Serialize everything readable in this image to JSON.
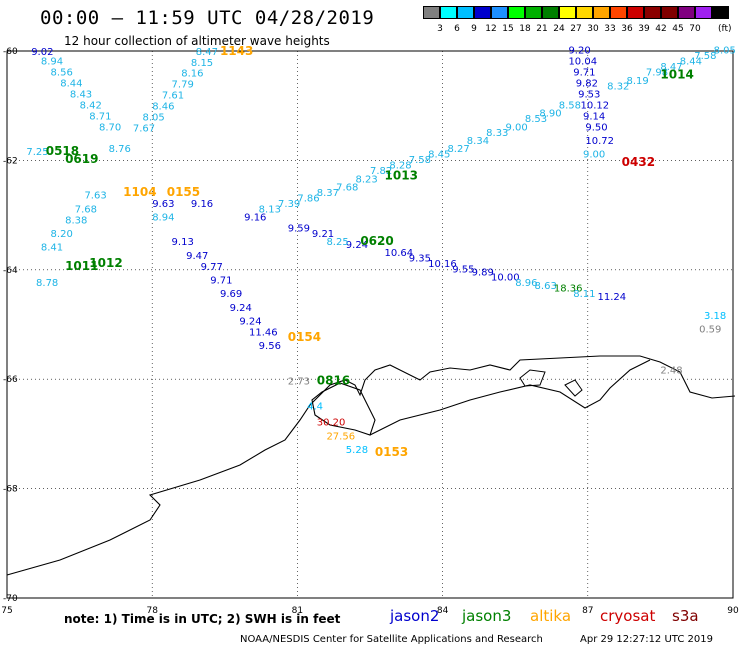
{
  "header": {
    "title": "00:00 – 11:59 UTC 04/28/2019",
    "subtitle": "12 hour collection of altimeter wave heights"
  },
  "legend": {
    "colors": [
      "#808080",
      "#00ffff",
      "#00bfff",
      "#0000cd",
      "#1e90ff",
      "#00ff00",
      "#00b000",
      "#008000",
      "#ffff00",
      "#ffd700",
      "#ffa500",
      "#ff4500",
      "#cd0000",
      "#8b0000",
      "#800000",
      "#800080",
      "#a020f0",
      "#000000"
    ],
    "labels": [
      "3",
      "6",
      "9",
      "12",
      "15",
      "18",
      "21",
      "24",
      "27",
      "30",
      "33",
      "36",
      "39",
      "42",
      "45",
      "70"
    ],
    "unit": "(ft)"
  },
  "axes": {
    "x_ticks": [
      "75",
      "78",
      "81",
      "84",
      "87",
      "90"
    ],
    "y_ticks": [
      "-60",
      "-62",
      "-64",
      "-66",
      "-68",
      "-70"
    ]
  },
  "footer": {
    "note": "note: 1) Time is in UTC; 2) SWH is in feet",
    "satellites": [
      {
        "name": "jason2",
        "color": "#0000cd"
      },
      {
        "name": "jason3",
        "color": "#008000"
      },
      {
        "name": "altika",
        "color": "#ffa500"
      },
      {
        "name": "cryosat",
        "color": "#cd0000"
      },
      {
        "name": "s3a",
        "color": "#800000"
      }
    ],
    "credit": "NOAA/NESDIS Center for Satellite Applications and Research",
    "timestamp": "Apr 29 12:27:12 UTC 2019"
  },
  "tracks": {
    "times": [
      {
        "t": "1143",
        "lon": 79.4,
        "lat": -60.07,
        "color": "#ffa500"
      },
      {
        "t": "1014",
        "lon": 88.5,
        "lat": -60.5,
        "color": "#008000"
      },
      {
        "t": "0518",
        "lon": 75.8,
        "lat": -61.9,
        "color": "#008000"
      },
      {
        "t": "0619",
        "lon": 76.2,
        "lat": -62.05,
        "color": "#008000"
      },
      {
        "t": "0432",
        "lon": 87.7,
        "lat": -62.1,
        "color": "#cd0000"
      },
      {
        "t": "1013",
        "lon": 82.8,
        "lat": -62.35,
        "color": "#008000"
      },
      {
        "t": "1104",
        "lon": 77.4,
        "lat": -62.65,
        "color": "#ffa500"
      },
      {
        "t": "0155",
        "lon": 78.3,
        "lat": -62.65,
        "color": "#ffa500"
      },
      {
        "t": "0620",
        "lon": 82.3,
        "lat": -63.55,
        "color": "#008000"
      },
      {
        "t": "1011",
        "lon": 76.2,
        "lat": -64.0,
        "color": "#008000"
      },
      {
        "t": "1012",
        "lon": 76.7,
        "lat": -63.95,
        "color": "#008000"
      },
      {
        "t": "0154",
        "lon": 80.8,
        "lat": -65.3,
        "color": "#ffa500"
      },
      {
        "t": "0816",
        "lon": 81.4,
        "lat": -66.1,
        "color": "#008000"
      },
      {
        "t": "0153",
        "lon": 82.6,
        "lat": -67.4,
        "color": "#ffa500"
      }
    ],
    "values": [
      {
        "v": "9.02",
        "lon": 75.5,
        "lat": -60.07,
        "c": "#0000cd"
      },
      {
        "v": "8.94",
        "lon": 75.7,
        "lat": -60.25,
        "c": "#1eb4e6"
      },
      {
        "v": "8.56",
        "lon": 75.9,
        "lat": -60.45,
        "c": "#1eb4e6"
      },
      {
        "v": "8.44",
        "lon": 76.1,
        "lat": -60.65,
        "c": "#1eb4e6"
      },
      {
        "v": "8.43",
        "lon": 76.3,
        "lat": -60.85,
        "c": "#1eb4e6"
      },
      {
        "v": "8.42",
        "lon": 76.5,
        "lat": -61.05,
        "c": "#1eb4e6"
      },
      {
        "v": "8.71",
        "lon": 76.7,
        "lat": -61.25,
        "c": "#1eb4e6"
      },
      {
        "v": "8.70",
        "lon": 76.9,
        "lat": -61.45,
        "c": "#1eb4e6"
      },
      {
        "v": "8.76",
        "lon": 77.1,
        "lat": -61.85,
        "c": "#1eb4e6"
      },
      {
        "v": "7.63",
        "lon": 76.6,
        "lat": -62.7,
        "c": "#1eb4e6"
      },
      {
        "v": "7.68",
        "lon": 76.4,
        "lat": -62.95,
        "c": "#1eb4e6"
      },
      {
        "v": "8.38",
        "lon": 76.2,
        "lat": -63.15,
        "c": "#1eb4e6"
      },
      {
        "v": "8.20",
        "lon": 75.9,
        "lat": -63.4,
        "c": "#1eb4e6"
      },
      {
        "v": "8.41",
        "lon": 75.7,
        "lat": -63.65,
        "c": "#1eb4e6"
      },
      {
        "v": "8.78",
        "lon": 75.6,
        "lat": -64.3,
        "c": "#1eb4e6"
      },
      {
        "v": "7.25",
        "lon": 75.4,
        "lat": -61.9,
        "c": "#1eb4e6"
      },
      {
        "v": "8.47",
        "lon": 78.9,
        "lat": -60.07,
        "c": "#1eb4e6"
      },
      {
        "v": "8.15",
        "lon": 78.8,
        "lat": -60.27,
        "c": "#1eb4e6"
      },
      {
        "v": "8.16",
        "lon": 78.6,
        "lat": -60.47,
        "c": "#1eb4e6"
      },
      {
        "v": "7.79",
        "lon": 78.4,
        "lat": -60.67,
        "c": "#1eb4e6"
      },
      {
        "v": "7.61",
        "lon": 78.2,
        "lat": -60.87,
        "c": "#1eb4e6"
      },
      {
        "v": "8.46",
        "lon": 78.0,
        "lat": -61.07,
        "c": "#1eb4e6"
      },
      {
        "v": "8.05",
        "lon": 77.8,
        "lat": -61.27,
        "c": "#1eb4e6"
      },
      {
        "v": "7.67",
        "lon": 77.6,
        "lat": -61.47,
        "c": "#1eb4e6"
      },
      {
        "v": "9.63",
        "lon": 78.0,
        "lat": -62.85,
        "c": "#0000cd"
      },
      {
        "v": "8.94",
        "lon": 78.0,
        "lat": -63.1,
        "c": "#1eb4e6"
      },
      {
        "v": "9.16",
        "lon": 78.8,
        "lat": -62.85,
        "c": "#0000cd"
      },
      {
        "v": "9.13",
        "lon": 78.4,
        "lat": -63.55,
        "c": "#0000cd"
      },
      {
        "v": "9.47",
        "lon": 78.7,
        "lat": -63.8,
        "c": "#0000cd"
      },
      {
        "v": "9.77",
        "lon": 79.0,
        "lat": -64.0,
        "c": "#0000cd"
      },
      {
        "v": "9.71",
        "lon": 79.2,
        "lat": -64.25,
        "c": "#0000cd"
      },
      {
        "v": "9.69",
        "lon": 79.4,
        "lat": -64.5,
        "c": "#0000cd"
      },
      {
        "v": "9.24",
        "lon": 79.6,
        "lat": -64.75,
        "c": "#0000cd"
      },
      {
        "v": "9.24",
        "lon": 79.8,
        "lat": -65.0,
        "c": "#0000cd"
      },
      {
        "v": "11.46",
        "lon": 80.0,
        "lat": -65.2,
        "c": "#0000cd"
      },
      {
        "v": "9.56",
        "lon": 80.2,
        "lat": -65.45,
        "c": "#0000cd"
      },
      {
        "v": "9.16",
        "lon": 79.9,
        "lat": -63.1,
        "c": "#0000cd"
      },
      {
        "v": "9.59",
        "lon": 80.8,
        "lat": -63.3,
        "c": "#0000cd"
      },
      {
        "v": "9.21",
        "lon": 81.3,
        "lat": -63.4,
        "c": "#0000cd"
      },
      {
        "v": "9.24",
        "lon": 82.0,
        "lat": -63.6,
        "c": "#0000cd"
      },
      {
        "v": "10.64",
        "lon": 82.8,
        "lat": -63.75,
        "c": "#0000cd"
      },
      {
        "v": "9.35",
        "lon": 83.3,
        "lat": -63.85,
        "c": "#0000cd"
      },
      {
        "v": "10.16",
        "lon": 83.7,
        "lat": -63.95,
        "c": "#0000cd"
      },
      {
        "v": "9.55",
        "lon": 84.2,
        "lat": -64.05,
        "c": "#0000cd"
      },
      {
        "v": "9.89",
        "lon": 84.6,
        "lat": -64.1,
        "c": "#0000cd"
      },
      {
        "v": "10.00",
        "lon": 85.0,
        "lat": -64.2,
        "c": "#0000cd"
      },
      {
        "v": "8.96",
        "lon": 85.5,
        "lat": -64.3,
        "c": "#1eb4e6"
      },
      {
        "v": "8.63",
        "lon": 85.9,
        "lat": -64.35,
        "c": "#1eb4e6"
      },
      {
        "v": "18.36",
        "lon": 86.3,
        "lat": -64.4,
        "c": "#008000"
      },
      {
        "v": "8.11",
        "lon": 86.7,
        "lat": -64.5,
        "c": "#1eb4e6"
      },
      {
        "v": "11.24",
        "lon": 87.2,
        "lat": -64.55,
        "c": "#0000cd"
      },
      {
        "v": "8.13",
        "lon": 80.2,
        "lat": -62.95,
        "c": "#1eb4e6"
      },
      {
        "v": "7.39",
        "lon": 80.6,
        "lat": -62.85,
        "c": "#1eb4e6"
      },
      {
        "v": "7.86",
        "lon": 81.0,
        "lat": -62.75,
        "c": "#1eb4e6"
      },
      {
        "v": "8.37",
        "lon": 81.4,
        "lat": -62.65,
        "c": "#1eb4e6"
      },
      {
        "v": "7.68",
        "lon": 81.8,
        "lat": -62.55,
        "c": "#1eb4e6"
      },
      {
        "v": "8.23",
        "lon": 82.2,
        "lat": -62.4,
        "c": "#1eb4e6"
      },
      {
        "v": "7.82",
        "lon": 82.5,
        "lat": -62.25,
        "c": "#1eb4e6"
      },
      {
        "v": "8.28",
        "lon": 82.9,
        "lat": -62.15,
        "c": "#1eb4e6"
      },
      {
        "v": "7.58",
        "lon": 83.3,
        "lat": -62.05,
        "c": "#1eb4e6"
      },
      {
        "v": "8.45",
        "lon": 83.7,
        "lat": -61.95,
        "c": "#1eb4e6"
      },
      {
        "v": "8.27",
        "lon": 84.1,
        "lat": -61.85,
        "c": "#1eb4e6"
      },
      {
        "v": "8.34",
        "lon": 84.5,
        "lat": -61.7,
        "c": "#1eb4e6"
      },
      {
        "v": "8.33",
        "lon": 84.9,
        "lat": -61.55,
        "c": "#1eb4e6"
      },
      {
        "v": "9.00",
        "lon": 85.3,
        "lat": -61.45,
        "c": "#1eb4e6"
      },
      {
        "v": "8.53",
        "lon": 85.7,
        "lat": -61.3,
        "c": "#1eb4e6"
      },
      {
        "v": "8.90",
        "lon": 86.0,
        "lat": -61.2,
        "c": "#1eb4e6"
      },
      {
        "v": "8.58",
        "lon": 86.4,
        "lat": -61.05,
        "c": "#1eb4e6"
      },
      {
        "v": "8.32",
        "lon": 87.4,
        "lat": -60.7,
        "c": "#1eb4e6"
      },
      {
        "v": "8.19",
        "lon": 87.8,
        "lat": -60.6,
        "c": "#1eb4e6"
      },
      {
        "v": "7.98",
        "lon": 88.2,
        "lat": -60.45,
        "c": "#1eb4e6"
      },
      {
        "v": "8.47",
        "lon": 88.5,
        "lat": -60.35,
        "c": "#1eb4e6"
      },
      {
        "v": "8.44",
        "lon": 88.9,
        "lat": -60.25,
        "c": "#1eb4e6"
      },
      {
        "v": "7.58",
        "lon": 89.2,
        "lat": -60.15,
        "c": "#1eb4e6"
      },
      {
        "v": "8.05",
        "lon": 89.6,
        "lat": -60.05,
        "c": "#1eb4e6"
      },
      {
        "v": "9.20",
        "lon": 86.6,
        "lat": -60.05,
        "c": "#0000cd"
      },
      {
        "v": "10.04",
        "lon": 86.6,
        "lat": -60.25,
        "c": "#0000cd"
      },
      {
        "v": "9.71",
        "lon": 86.7,
        "lat": -60.45,
        "c": "#0000cd"
      },
      {
        "v": "9.82",
        "lon": 86.75,
        "lat": -60.65,
        "c": "#0000cd"
      },
      {
        "v": "9.53",
        "lon": 86.8,
        "lat": -60.85,
        "c": "#0000cd"
      },
      {
        "v": "10.12",
        "lon": 86.85,
        "lat": -61.05,
        "c": "#0000cd"
      },
      {
        "v": "9.14",
        "lon": 86.9,
        "lat": -61.25,
        "c": "#0000cd"
      },
      {
        "v": "9.50",
        "lon": 86.95,
        "lat": -61.45,
        "c": "#0000cd"
      },
      {
        "v": "10.72",
        "lon": 86.95,
        "lat": -61.7,
        "c": "#0000cd"
      },
      {
        "v": "9.00",
        "lon": 86.9,
        "lat": -61.95,
        "c": "#1eb4e6"
      },
      {
        "v": "8.25",
        "lon": 81.6,
        "lat": -63.55,
        "c": "#1eb4e6"
      },
      {
        "v": "3.18",
        "lon": 89.4,
        "lat": -64.9,
        "c": "#00bfff"
      },
      {
        "v": "0.59",
        "lon": 89.3,
        "lat": -65.15,
        "c": "#808080"
      },
      {
        "v": "2.48",
        "lon": 88.5,
        "lat": -65.9,
        "c": "#808080"
      },
      {
        "v": "2.73",
        "lon": 80.8,
        "lat": -66.1,
        "c": "#808080"
      },
      {
        "v": "4.4",
        "lon": 81.2,
        "lat": -66.55,
        "c": "#00bfff"
      },
      {
        "v": "30.20",
        "lon": 81.4,
        "lat": -66.85,
        "c": "#cd0000"
      },
      {
        "v": "27.56",
        "lon": 81.6,
        "lat": -67.1,
        "c": "#ffa500"
      },
      {
        "v": "5.28",
        "lon": 82.0,
        "lat": -67.35,
        "c": "#00bfff"
      }
    ]
  }
}
